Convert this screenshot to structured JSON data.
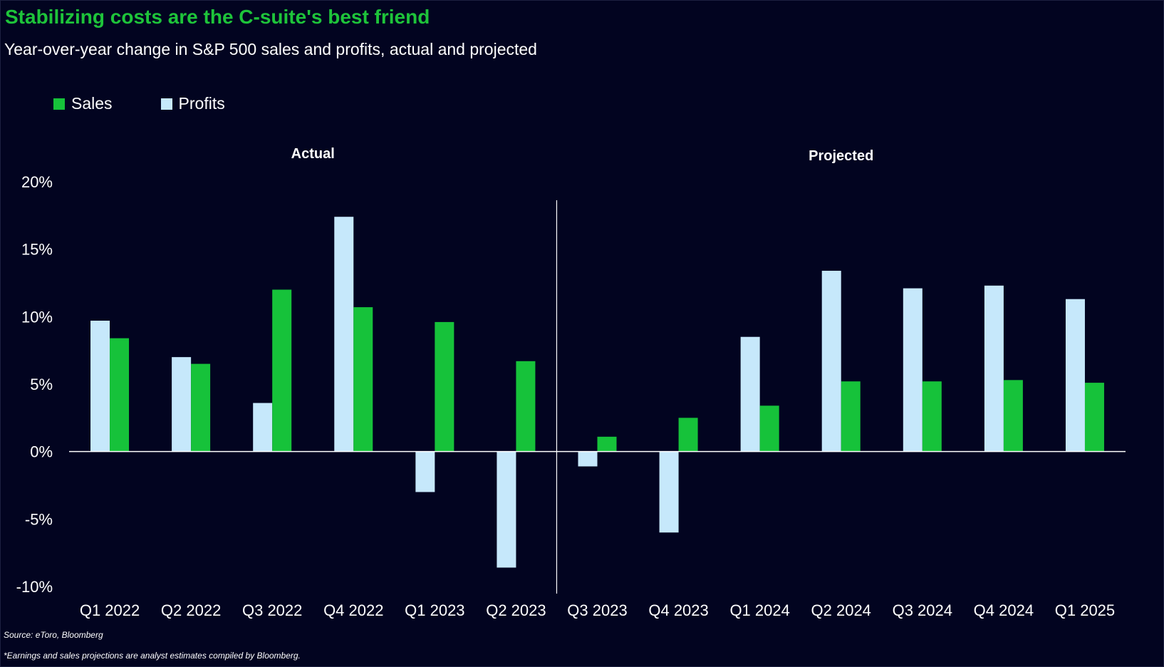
{
  "title": "Stabilizing costs are the C-suite's best friend",
  "subtitle": "Year-over-year change in S&P 500 sales and profits, actual and projected",
  "colors": {
    "background": "#020420",
    "sales": "#16c23a",
    "profits": "#c6e8fb",
    "title": "#1ec43a"
  },
  "chart_data": {
    "type": "bar",
    "categories": [
      "Q1 2022",
      "Q2 2022",
      "Q3 2022",
      "Q4 2022",
      "Q1 2023",
      "Q2 2023",
      "Q3 2023",
      "Q4 2023",
      "Q1 2024",
      "Q2 2024",
      "Q3 2024",
      "Q4 2024",
      "Q1 2025"
    ],
    "series": [
      {
        "name": "Profits",
        "values": [
          9.7,
          7.0,
          3.6,
          17.4,
          -3.0,
          -8.6,
          -1.1,
          -6.0,
          8.5,
          13.4,
          12.1,
          12.3,
          11.3
        ]
      },
      {
        "name": "Sales",
        "values": [
          8.4,
          6.5,
          12.0,
          10.7,
          9.6,
          6.7,
          1.1,
          2.5,
          3.4,
          5.2,
          5.2,
          5.3,
          5.1
        ]
      }
    ],
    "ylim": [
      -10,
      20
    ],
    "yticks": [
      20,
      15,
      10,
      5,
      0,
      -5,
      -10
    ],
    "ytick_labels": [
      "20%",
      "15%",
      "10%",
      "5%",
      "0%",
      "-5%",
      "-10%"
    ],
    "sections": [
      {
        "label": "Actual"
      },
      {
        "label": "Projected"
      }
    ],
    "legend_position": "top-left",
    "grid": false
  },
  "footnotes": {
    "source": "Source: eToro, Bloomberg",
    "note": "*Earnings and sales projections are analyst estimates compiled by Bloomberg."
  }
}
